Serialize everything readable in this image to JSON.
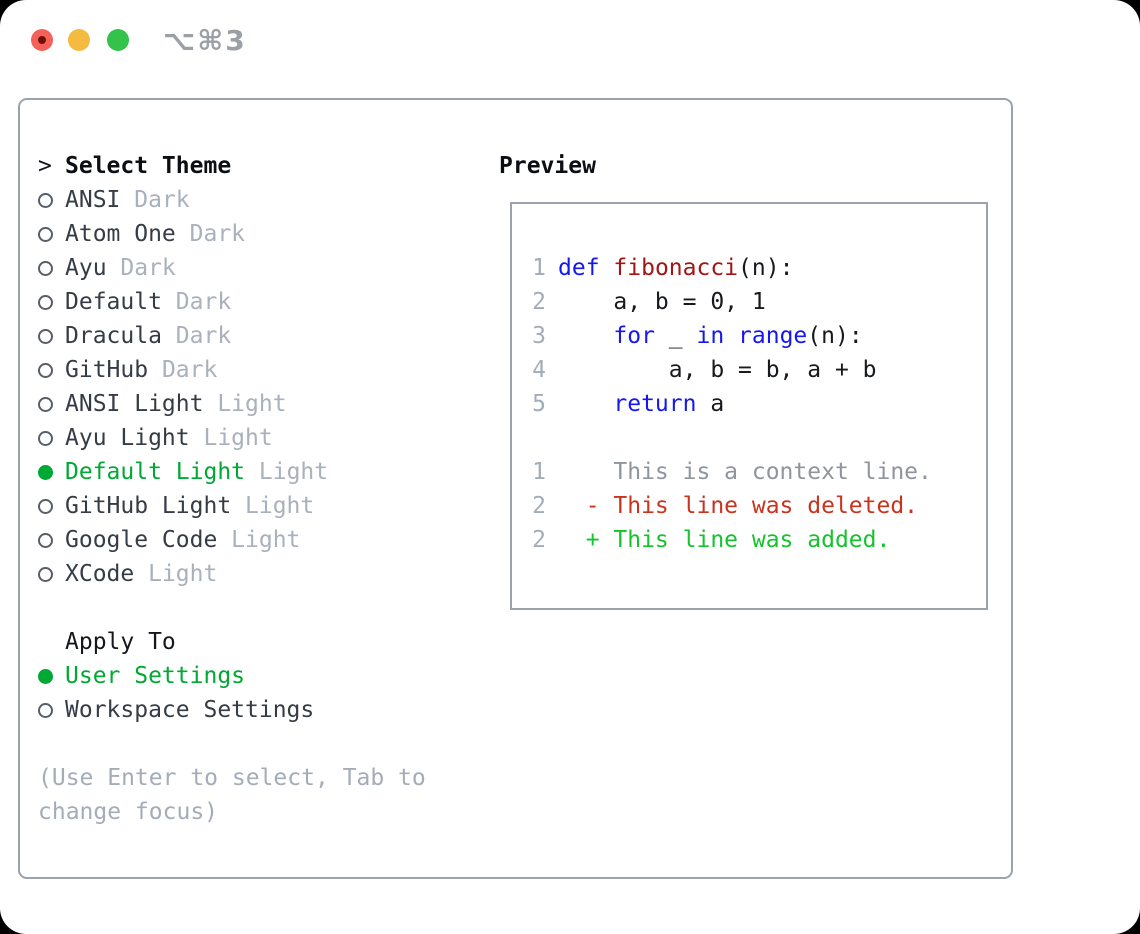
{
  "window": {
    "shortcut_label": "⌥⌘3"
  },
  "theme_picker": {
    "header_marker": ">",
    "header_label": "Select Theme",
    "themes": [
      {
        "name": "ANSI",
        "variant": "Dark",
        "selected": false
      },
      {
        "name": "Atom One",
        "variant": "Dark",
        "selected": false
      },
      {
        "name": "Ayu",
        "variant": "Dark",
        "selected": false
      },
      {
        "name": "Default",
        "variant": "Dark",
        "selected": false
      },
      {
        "name": "Dracula",
        "variant": "Dark",
        "selected": false
      },
      {
        "name": "GitHub",
        "variant": "Dark",
        "selected": false
      },
      {
        "name": "ANSI Light",
        "variant": "Light",
        "selected": false
      },
      {
        "name": "Ayu Light",
        "variant": "Light",
        "selected": false
      },
      {
        "name": "Default Light",
        "variant": "Light",
        "selected": true
      },
      {
        "name": "GitHub Light",
        "variant": "Light",
        "selected": false
      },
      {
        "name": "Google Code",
        "variant": "Light",
        "selected": false
      },
      {
        "name": "XCode",
        "variant": "Light",
        "selected": false
      }
    ],
    "apply_to_label": "Apply To",
    "apply_options": [
      {
        "name": "User Settings",
        "selected": true
      },
      {
        "name": "Workspace Settings",
        "selected": false
      }
    ],
    "help_text": "(Use Enter to select, Tab to change focus)"
  },
  "preview": {
    "title": "Preview",
    "code_lines": [
      {
        "num": "1",
        "tokens": [
          {
            "c": "kw",
            "t": "def"
          },
          {
            "c": "code",
            "t": " "
          },
          {
            "c": "fn",
            "t": "fibonacci"
          },
          {
            "c": "code",
            "t": "(n):"
          }
        ]
      },
      {
        "num": "2",
        "tokens": [
          {
            "c": "code",
            "t": "    a, b = 0, 1"
          }
        ]
      },
      {
        "num": "3",
        "tokens": [
          {
            "c": "code",
            "t": "    "
          },
          {
            "c": "kw",
            "t": "for"
          },
          {
            "c": "code",
            "t": " _ "
          },
          {
            "c": "kw",
            "t": "in"
          },
          {
            "c": "code",
            "t": " "
          },
          {
            "c": "kw",
            "t": "range"
          },
          {
            "c": "code",
            "t": "(n):"
          }
        ]
      },
      {
        "num": "4",
        "tokens": [
          {
            "c": "code",
            "t": "        a, b = b, a + b"
          }
        ]
      },
      {
        "num": "5",
        "tokens": [
          {
            "c": "code",
            "t": "    "
          },
          {
            "c": "kw",
            "t": "return"
          },
          {
            "c": "code",
            "t": " a"
          }
        ]
      },
      {
        "num": "",
        "tokens": []
      },
      {
        "num": "1",
        "tokens": [
          {
            "c": "ctx",
            "t": "    This is a context line."
          }
        ]
      },
      {
        "num": "2",
        "tokens": [
          {
            "c": "del",
            "t": "  - This line was deleted."
          }
        ]
      },
      {
        "num": "2",
        "tokens": [
          {
            "c": "add",
            "t": "  + This line was added."
          }
        ]
      }
    ]
  },
  "colors": {
    "accent_green": "#00a834",
    "added_green": "#15c32d",
    "deleted_red": "#c8341e",
    "keyword_blue": "#1518ee",
    "function_red": "#a31515",
    "muted_gray": "#a9b1bd",
    "border_gray": "#9aa2ac",
    "traffic_red": "#f4615b",
    "traffic_yellow": "#f5bb40",
    "traffic_green": "#33c24a"
  }
}
